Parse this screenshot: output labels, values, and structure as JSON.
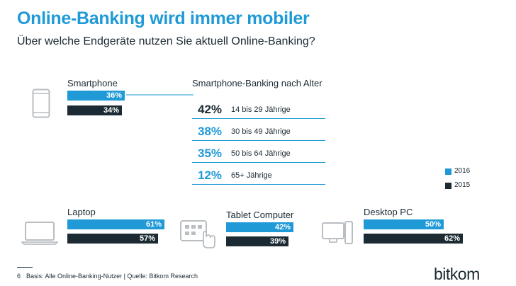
{
  "header": {
    "title": "Online-Banking wird immer mobiler",
    "subtitle": "Über welche Endgeräte nutzen Sie aktuell Online-Banking?"
  },
  "colors": {
    "2016": "#1f9ad6",
    "2015": "#1b2a33",
    "icon": "#b9bec2"
  },
  "chart_data": {
    "type": "bar",
    "categories": [
      "Smartphone",
      "Laptop",
      "Tablet Computer",
      "Desktop PC"
    ],
    "series": [
      {
        "name": "2016",
        "values": [
          36,
          61,
          42,
          50
        ],
        "labels": [
          "36%",
          "61%",
          "42%",
          "50%"
        ]
      },
      {
        "name": "2015",
        "values": [
          34,
          57,
          39,
          62
        ],
        "labels": [
          "34%",
          "57%",
          "39%",
          "62%"
        ]
      }
    ],
    "icons": [
      "smartphone-icon",
      "laptop-icon",
      "tablet-icon",
      "desktop-pc-icon"
    ],
    "unit": "%",
    "legend": "right",
    "age_breakdown": {
      "title": "Smartphone-Banking nach Alter",
      "rows": [
        {
          "value": 42,
          "pct": "42%",
          "label": "14 bis 29 Jährige"
        },
        {
          "value": 38,
          "pct": "38%",
          "label": "30 bis 49 Jährige"
        },
        {
          "value": 35,
          "pct": "35%",
          "label": "50 bis 64 Jährige"
        },
        {
          "value": 12,
          "pct": "12%",
          "label": "65+ Jährige"
        }
      ]
    }
  },
  "footer": {
    "page_number": "6",
    "source": "Basis: Alle Online-Banking-Nutzer  | Quelle: Bitkom Research",
    "brand": "bitkom"
  }
}
